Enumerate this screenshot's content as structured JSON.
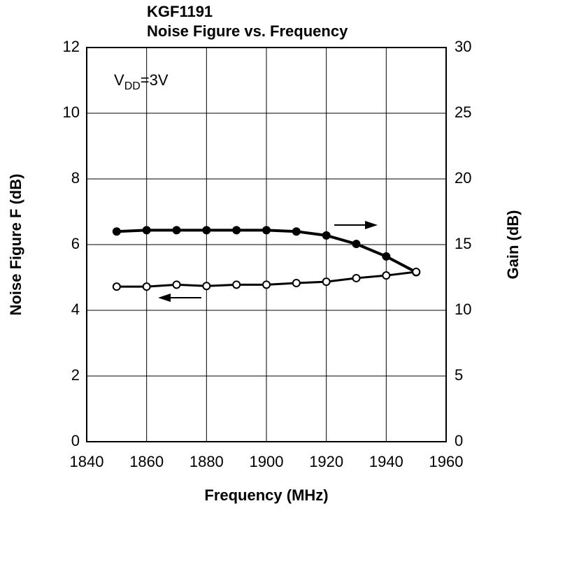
{
  "chart_data": {
    "type": "line",
    "title": "KGF1191",
    "subtitle": "Noise Figure vs. Frequency",
    "x_label": "Frequency  (MHz)",
    "y_label": "Noise Figure  F  (dB)",
    "y2_label": "Gain  (dB)",
    "annotation": {
      "main": "V",
      "subscript": "DD",
      "suffix": "=3V"
    },
    "x": [
      1850,
      1860,
      1870,
      1880,
      1890,
      1900,
      1910,
      1920,
      1930,
      1940,
      1950
    ],
    "series": [
      {
        "name": "Gain",
        "axis": "y2",
        "color": "#000",
        "marker": "filled",
        "values": [
          16.0,
          16.1,
          16.1,
          16.1,
          16.1,
          16.1,
          16.0,
          15.7,
          15.05,
          14.1,
          12.9
        ]
      },
      {
        "name": "Noise Figure",
        "color": "#000",
        "marker": "open",
        "values": [
          4.72,
          4.72,
          4.78,
          4.74,
          4.78,
          4.78,
          4.83,
          4.87,
          4.98,
          5.06,
          5.17
        ]
      }
    ],
    "xlim": [
      1840,
      1960
    ],
    "xticks": [
      1840,
      1860,
      1880,
      1900,
      1920,
      1940,
      1960
    ],
    "ylim": [
      0,
      12
    ],
    "yticks": [
      0,
      2,
      4,
      6,
      8,
      10,
      12
    ],
    "y2lim": [
      0,
      30
    ],
    "y2ticks": [
      0,
      5,
      10,
      15,
      20,
      25,
      30
    ],
    "grid": true
  }
}
